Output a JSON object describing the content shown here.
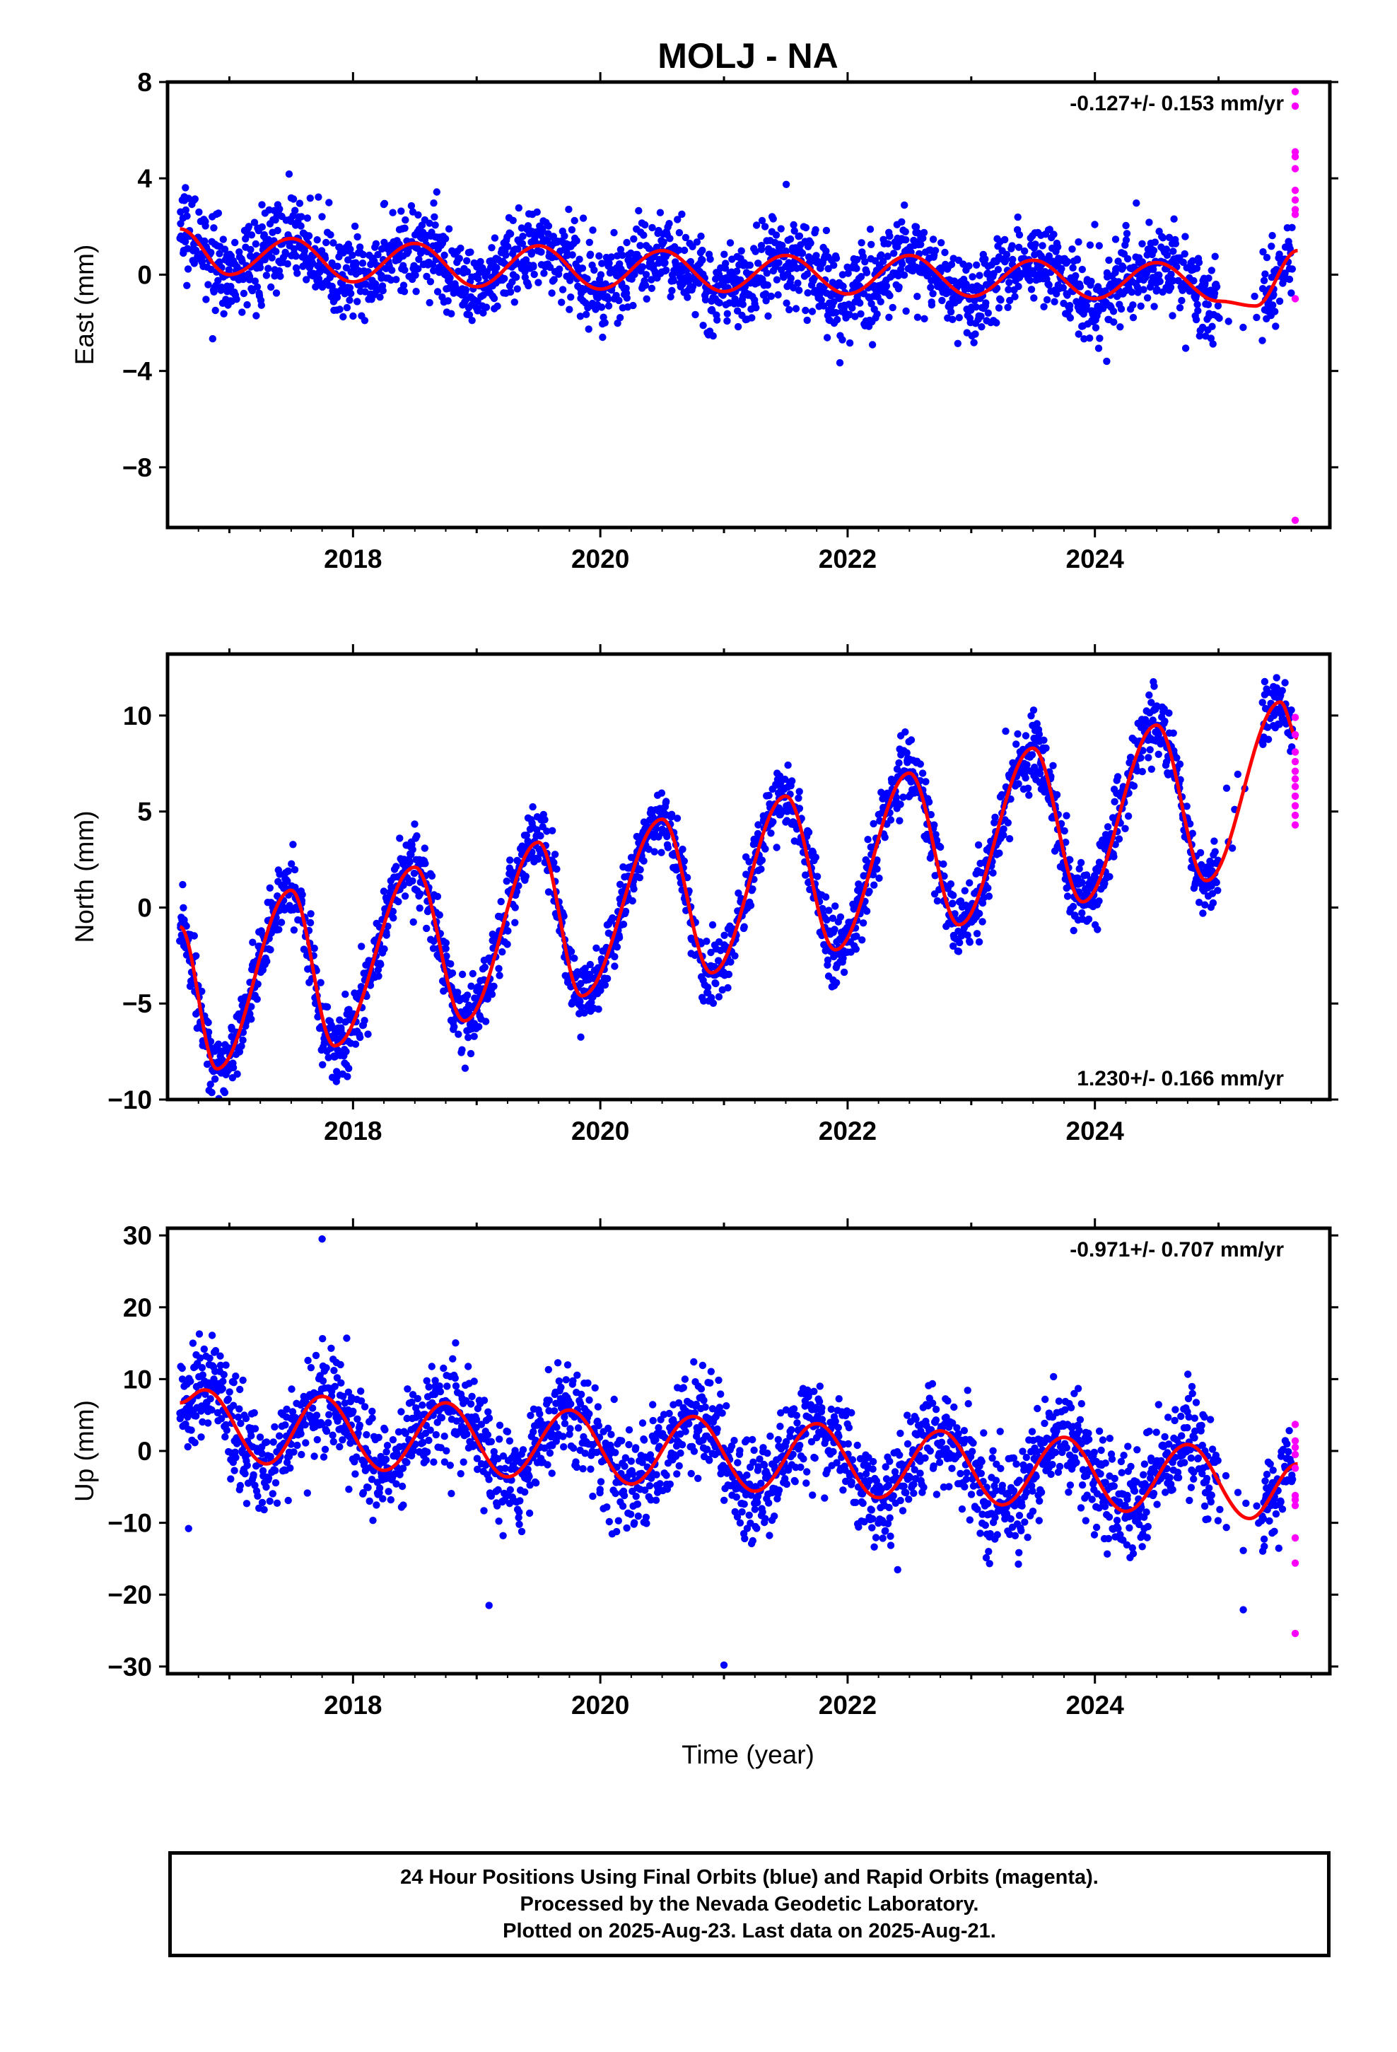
{
  "title": "MOLJ - NA",
  "xlabel": "Time (year)",
  "footer": {
    "line1": "24 Hour Positions Using Final Orbits (blue) and Rapid Orbits (magenta).",
    "line2": "Processed by the Nevada Geodetic Laboratory.",
    "line3": "Plotted on 2025-Aug-23. Last data on 2025-Aug-21."
  },
  "colors": {
    "final_orbits": "#0000ff",
    "rapid_orbits": "#ff00ff",
    "model_fit": "#ff0000",
    "frame": "#000000"
  },
  "chart_data": [
    {
      "type": "scatter",
      "ylabel": "East (mm)",
      "rate_annotation": "-0.127+/- 0.153 mm/yr",
      "annotation_position": "top-right",
      "xlim": [
        2016.5,
        2025.9
      ],
      "ylim": [
        -10.5,
        8
      ],
      "yticks": [
        -8,
        -4,
        0,
        4,
        8
      ],
      "xticks": [
        2018,
        2020,
        2022,
        2024
      ],
      "data_start": 2016.6,
      "data_end": 2025.64,
      "model": {
        "rate_mm_per_yr": -0.127,
        "annual_amplitude_mm": 1.2,
        "peak_phase_yr": 0.7,
        "offset_mm": 0.6,
        "x": [
          2016.6,
          2017.0,
          2017.5,
          2018.0,
          2018.5,
          2019.0,
          2019.5,
          2020.0,
          2020.5,
          2021.0,
          2021.5,
          2022.0,
          2022.5,
          2023.0,
          2023.5,
          2024.0,
          2024.5,
          2025.0,
          2025.3,
          2025.64
        ],
        "y": [
          1.9,
          0.0,
          1.5,
          -0.3,
          1.3,
          -0.5,
          1.2,
          -0.6,
          1.0,
          -0.7,
          0.8,
          -0.8,
          0.8,
          -0.9,
          0.6,
          -1.0,
          0.5,
          -1.1,
          -1.3,
          1.0
        ]
      },
      "scatter": {
        "noise_sd_mm": 0.9,
        "n_points": 2600,
        "gap": [
          2025.0,
          2025.35
        ]
      },
      "rapid_points": {
        "x": 2025.62,
        "y": [
          7.6,
          7.0,
          5.1,
          4.9,
          4.4,
          3.5,
          3.1,
          2.7,
          2.5,
          -1.0,
          -10.2
        ]
      }
    },
    {
      "type": "scatter",
      "ylabel": "North (mm)",
      "rate_annotation": "1.230+/- 0.166 mm/yr",
      "annotation_position": "bottom-right",
      "xlim": [
        2016.5,
        2025.9
      ],
      "ylim": [
        -10,
        13.2
      ],
      "yticks": [
        -10,
        -5,
        0,
        5,
        10
      ],
      "xticks": [
        2018,
        2020,
        2022,
        2024
      ],
      "data_start": 2016.6,
      "data_end": 2025.64,
      "model": {
        "rate_mm_per_yr": 1.23,
        "annual_amplitude_mm": 4.2,
        "peak_phase_yr": 0.5,
        "offset_mm": -3.6,
        "x": [
          2016.6,
          2016.9,
          2017.5,
          2017.85,
          2018.5,
          2018.9,
          2019.5,
          2019.85,
          2020.5,
          2020.9,
          2021.5,
          2021.9,
          2022.5,
          2022.9,
          2023.5,
          2023.9,
          2024.5,
          2024.9,
          2025.5,
          2025.64
        ],
        "y": [
          -1.0,
          -8.4,
          0.9,
          -7.2,
          2.1,
          -5.9,
          3.4,
          -4.6,
          4.6,
          -3.4,
          5.8,
          -2.2,
          7.0,
          -0.9,
          8.3,
          0.3,
          9.5,
          1.4,
          10.7,
          8.8
        ]
      },
      "scatter": {
        "noise_sd_mm": 0.9,
        "n_points": 2600,
        "gap": [
          2025.0,
          2025.35
        ]
      },
      "rapid_points": {
        "x": 2025.62,
        "y": [
          9.9,
          9.0,
          8.1,
          7.6,
          7.1,
          6.7,
          6.3,
          5.8,
          5.3,
          4.8,
          4.3
        ]
      }
    },
    {
      "type": "scatter",
      "ylabel": "Up (mm)",
      "rate_annotation": "-0.971+/- 0.707 mm/yr",
      "annotation_position": "top-right",
      "xlim": [
        2016.5,
        2025.9
      ],
      "ylim": [
        -31,
        31
      ],
      "yticks": [
        -30,
        -20,
        -10,
        0,
        10,
        20,
        30
      ],
      "xticks": [
        2018,
        2020,
        2022,
        2024
      ],
      "data_start": 2016.6,
      "data_end": 2025.64,
      "model": {
        "rate_mm_per_yr": -0.971,
        "annual_amplitude_mm": 5.2,
        "peak_phase_yr": 0.75,
        "offset_mm": 2.8,
        "x": [
          2016.6,
          2016.8,
          2017.3,
          2017.75,
          2018.25,
          2018.75,
          2019.25,
          2019.75,
          2020.25,
          2020.75,
          2021.25,
          2021.75,
          2022.25,
          2022.75,
          2023.25,
          2023.75,
          2024.25,
          2024.75,
          2025.25,
          2025.64
        ],
        "y": [
          6.7,
          8.5,
          -1.8,
          7.6,
          -2.7,
          6.7,
          -3.6,
          5.7,
          -4.6,
          4.8,
          -5.6,
          3.8,
          -6.5,
          2.8,
          -7.5,
          1.9,
          -8.4,
          0.9,
          -9.4,
          -1.8
        ]
      },
      "scatter": {
        "noise_sd_mm": 3.6,
        "n_points": 2600,
        "gap": [
          2025.0,
          2025.35
        ]
      },
      "outliers": [
        {
          "x": 2017.75,
          "y": 29.5
        },
        {
          "x": 2016.67,
          "y": -10.8
        },
        {
          "x": 2019.1,
          "y": -21.5
        },
        {
          "x": 2021.0,
          "y": -29.8
        },
        {
          "x": 2025.2,
          "y": -22.1
        }
      ],
      "rapid_points": {
        "x": 2025.62,
        "y": [
          3.7,
          1.4,
          0.5,
          -0.5,
          -2.4,
          -6.2,
          -6.8,
          -7.6,
          -12.1,
          -15.6,
          -25.4
        ]
      }
    }
  ]
}
